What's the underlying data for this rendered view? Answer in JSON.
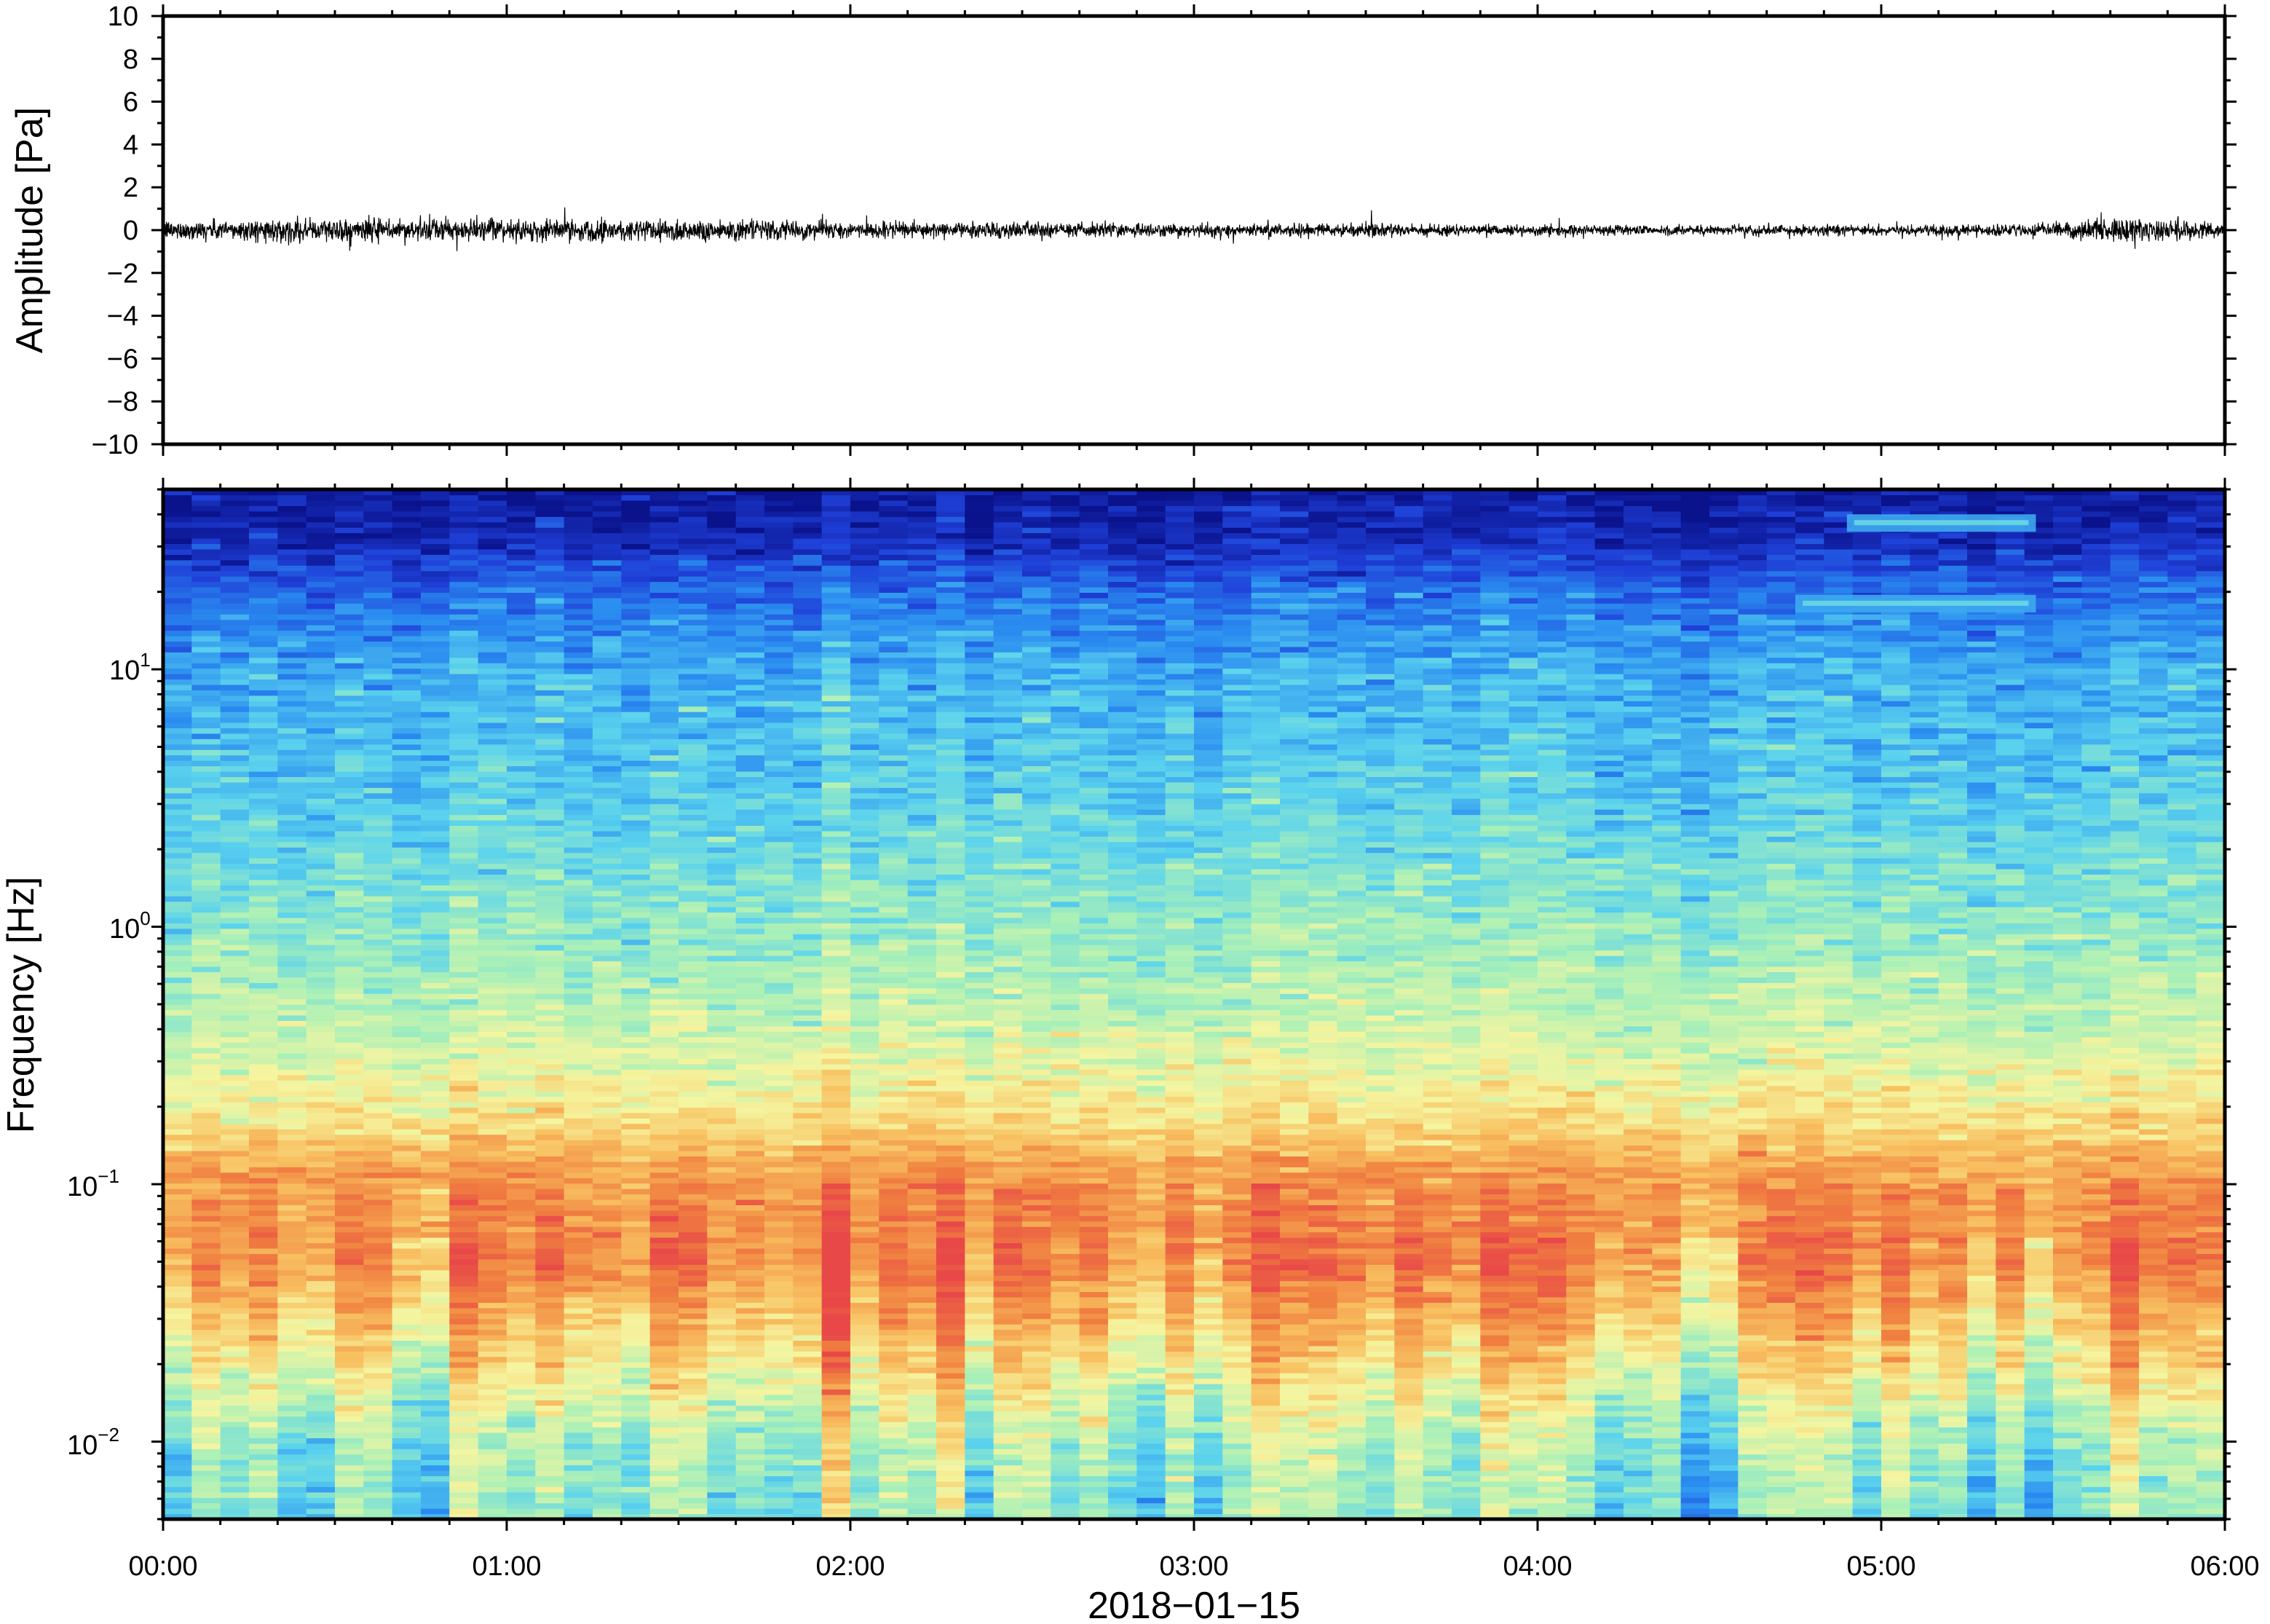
{
  "chart_data": [
    {
      "type": "line",
      "ylabel": "Amplitude [Pa]",
      "ylim": [
        -10,
        10
      ],
      "yticks": [
        "10",
        "8",
        "6",
        "4",
        "2",
        "0",
        "−2",
        "−4",
        "−6",
        "−8",
        "−10"
      ],
      "xlim": [
        "00:00",
        "06:00"
      ],
      "grid": false,
      "series": [
        {
          "x_hours": [
            0.0,
            0.5,
            1.0,
            1.5,
            2.0,
            2.5,
            3.0,
            3.5,
            4.0,
            4.5,
            5.0,
            5.5,
            5.7,
            6.0
          ],
          "envelope_pa": [
            0.35,
            0.45,
            0.4,
            0.45,
            0.3,
            0.3,
            0.25,
            0.25,
            0.2,
            0.2,
            0.2,
            0.25,
            0.5,
            0.3
          ],
          "color": "#000000"
        }
      ]
    },
    {
      "type": "heatmap",
      "ylabel": "Frequency [Hz]",
      "yscale": "log",
      "ylim": [
        0.005,
        50
      ],
      "yticks": [
        {
          "base": "10",
          "exp": "1",
          "value": 10
        },
        {
          "base": "10",
          "exp": "0",
          "value": 1
        },
        {
          "base": "10",
          "exp": "−1",
          "value": 0.1
        },
        {
          "base": "10",
          "exp": "−2",
          "value": 0.01
        }
      ],
      "xlabel": "2018−01−15",
      "xticks": [
        "00:00",
        "01:00",
        "02:00",
        "03:00",
        "04:00",
        "05:00",
        "06:00"
      ],
      "colormap": "rainbow (dark blue low → red high)",
      "colors": [
        "#0a128c",
        "#1f40d8",
        "#2a8cf0",
        "#5ad2ee",
        "#a8f0b8",
        "#f5f5a0",
        "#f8c060",
        "#f08040",
        "#e84848"
      ],
      "dominant_band_hz": [
        0.03,
        0.12
      ],
      "narrowband_features": [
        {
          "freq_hz": 18,
          "start": "04:45",
          "end": "05:27"
        },
        {
          "freq_hz": 37,
          "start": "04:54",
          "end": "05:27"
        }
      ]
    }
  ]
}
